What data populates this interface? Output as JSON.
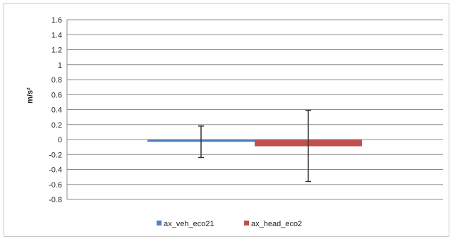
{
  "chart_data": {
    "type": "bar",
    "title": "",
    "ylabel": "m/s²",
    "xlabel": "",
    "ylim": [
      -0.8,
      1.6
    ],
    "ytick_step": 0.2,
    "ytick_labels": [
      "1.6",
      "1.4",
      "1.2",
      "1",
      "0.8",
      "0.6",
      "0.4",
      "0.2",
      "0",
      "-0.2",
      "-0.4",
      "-0.6",
      "-0.8"
    ],
    "grid": true,
    "legend_position": "bottom",
    "series": [
      {
        "name": "ax_veh_eco21",
        "value": -0.03,
        "error_low": -0.24,
        "error_high": 0.18,
        "color": "#4F81BD"
      },
      {
        "name": "ax_head_eco2",
        "value": -0.09,
        "error_low": -0.56,
        "error_high": 0.39,
        "color": "#C0504D"
      }
    ]
  }
}
